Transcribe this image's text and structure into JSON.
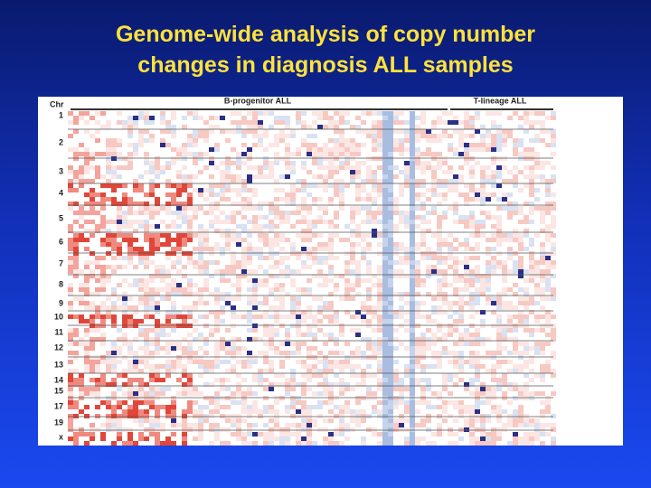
{
  "title": [
    "Genome-wide analysis of copy number",
    "changes in diagnosis ALL samples"
  ],
  "figure": {
    "row_header": "Chr",
    "chromosomes": [
      "1",
      "2",
      "3",
      "4",
      "5",
      "6",
      "7",
      "8",
      "9",
      "10",
      "11",
      "12",
      "13",
      "14",
      "15",
      "17",
      "19",
      "x"
    ],
    "groups": [
      "B-progenitor ALL",
      "T-lineage ALL"
    ]
  }
}
